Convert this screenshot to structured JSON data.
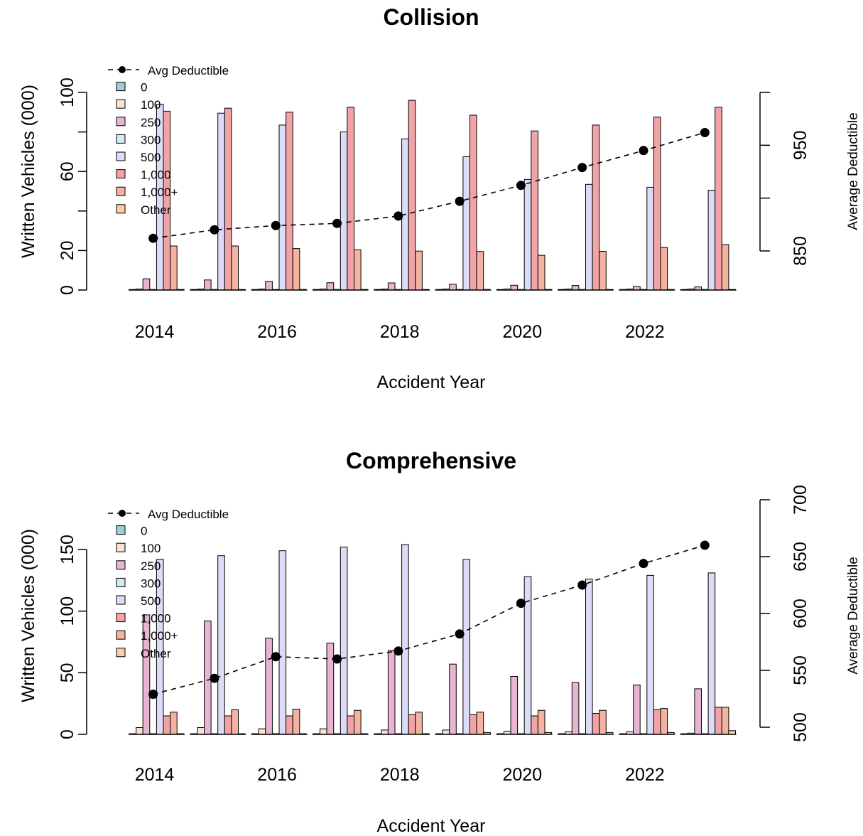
{
  "colors": {
    "bars": [
      "#9ccfd6",
      "#f9e1d5",
      "#e8b4d2",
      "#d0ecef",
      "#dcdcf7",
      "#f2a3a6",
      "#f4b2a0",
      "#fbcfa4"
    ],
    "line": "#000000"
  },
  "chart_data": [
    {
      "type": "bar",
      "title": "Collision",
      "xlabel": "Accident Year",
      "ylabel": "Written Vehicles (000)",
      "ylabel_right": "Average Deductible",
      "x": [
        2014,
        2015,
        2016,
        2017,
        2018,
        2019,
        2020,
        2021,
        2022,
        2023
      ],
      "x_tick_labels": [
        "2014",
        "2016",
        "2018",
        "2020",
        "2022"
      ],
      "y_ticks": [
        "0",
        "20",
        "60",
        "100"
      ],
      "y_ticks_right": [
        "850",
        "950"
      ],
      "ylim": [
        0,
        100
      ],
      "ylim_right": [
        850,
        1000
      ],
      "legend_position": "top-left",
      "line_legend": "Avg Deductible",
      "series": [
        {
          "name": "0",
          "values": [
            0.3,
            0.3,
            0.3,
            0.3,
            0.3,
            0.3,
            0.3,
            0.3,
            0.3,
            0.3
          ]
        },
        {
          "name": "100",
          "values": [
            0.5,
            0.5,
            0.5,
            0.5,
            0.5,
            0.5,
            0.5,
            0.5,
            0.5,
            0.5
          ]
        },
        {
          "name": "250",
          "values": [
            5.7,
            5.1,
            4.4,
            3.7,
            3.6,
            2.9,
            2.4,
            2.3,
            1.8,
            1.6
          ]
        },
        {
          "name": "300",
          "values": [
            0.3,
            0.3,
            0.3,
            0.3,
            0.3,
            0.3,
            0.3,
            0.3,
            0.3,
            0.3
          ]
        },
        {
          "name": "500",
          "values": [
            94,
            89.5,
            83.5,
            80,
            76.5,
            67.5,
            56,
            53.5,
            52,
            50.5
          ]
        },
        {
          "name": "1,000",
          "values": [
            90.5,
            92,
            90,
            92.5,
            96,
            88.5,
            80.5,
            83.5,
            87.5,
            92.5
          ]
        },
        {
          "name": "1,000+",
          "values": [
            22.3,
            22.3,
            21,
            20.4,
            19.7,
            19.5,
            17.6,
            19.6,
            21.5,
            23
          ]
        },
        {
          "name": "Other",
          "values": [
            0.3,
            0.3,
            0.3,
            0.3,
            0.3,
            0.3,
            0.3,
            0.3,
            0.3,
            0.3
          ]
        }
      ],
      "avg_deductible": [
        862,
        870,
        874,
        876,
        883,
        897,
        912,
        929,
        945,
        962
      ]
    },
    {
      "type": "bar",
      "title": "Comprehensive",
      "xlabel": "Accident Year",
      "ylabel": "Written Vehicles (000)",
      "ylabel_right": "Average Deductible",
      "x": [
        2014,
        2015,
        2016,
        2017,
        2018,
        2019,
        2020,
        2021,
        2022,
        2023
      ],
      "x_tick_labels": [
        "2014",
        "2016",
        "2018",
        "2020",
        "2022"
      ],
      "y_ticks": [
        "0",
        "50",
        "100",
        "150"
      ],
      "y_ticks_right": [
        "500",
        "550",
        "600",
        "650",
        "700"
      ],
      "ylim": [
        0,
        175
      ],
      "ylim_right": [
        500,
        700
      ],
      "legend_position": "top-left",
      "line_legend": "Avg Deductible",
      "series": [
        {
          "name": "0",
          "values": [
            0.5,
            0.5,
            0.5,
            0.5,
            0.5,
            0.5,
            0.5,
            0.5,
            0.5,
            0.5
          ]
        },
        {
          "name": "100",
          "values": [
            5.5,
            5.5,
            4.5,
            4.5,
            3.5,
            3.5,
            2.5,
            2,
            2,
            1
          ]
        },
        {
          "name": "250",
          "values": [
            97,
            92,
            78,
            74,
            68,
            57,
            47,
            42,
            40,
            37
          ]
        },
        {
          "name": "300",
          "values": [
            0.5,
            0.5,
            0.5,
            0.5,
            0.5,
            0.5,
            0.5,
            0.5,
            0.5,
            0.5
          ]
        },
        {
          "name": "500",
          "values": [
            142,
            145,
            149,
            152,
            154,
            142,
            128,
            126,
            129,
            131
          ]
        },
        {
          "name": "1,000",
          "values": [
            15,
            15,
            15,
            15,
            16,
            16,
            15,
            17,
            20,
            22
          ]
        },
        {
          "name": "1,000+",
          "values": [
            18,
            20,
            20.5,
            19.5,
            18,
            18,
            19.5,
            19.5,
            21,
            22
          ]
        },
        {
          "name": "Other",
          "values": [
            0.5,
            0.5,
            0.5,
            0.5,
            0.5,
            1.5,
            1.5,
            1.5,
            1.5,
            3
          ]
        }
      ],
      "avg_deductible": [
        529,
        543,
        562,
        560,
        567,
        582,
        609,
        625,
        644,
        660
      ]
    }
  ]
}
